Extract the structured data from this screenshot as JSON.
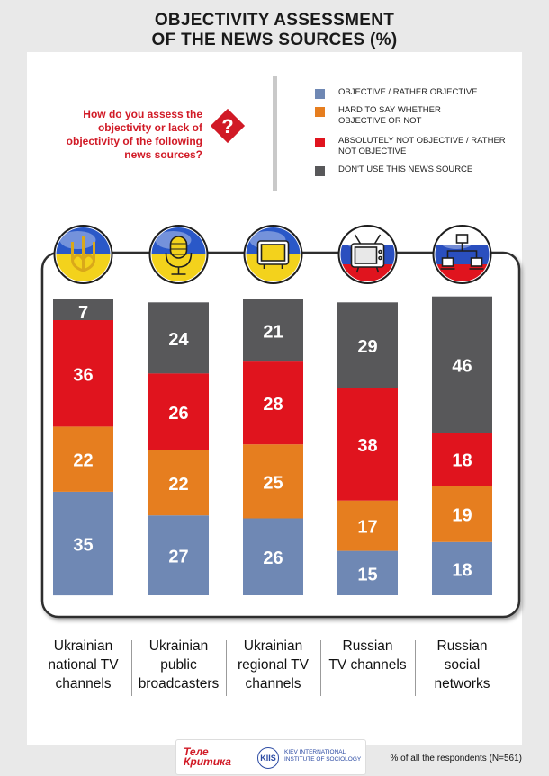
{
  "title_line1": "OBJECTIVITY ASSESSMENT",
  "title_line2": "OF THE NEWS SOURCES (%)",
  "question": "How do you assess the objectivity or lack of objectivity of the following news sources?",
  "question_mark": "?",
  "colors": {
    "objective": "#6f88b4",
    "hard_to_say": "#e67e1f",
    "not_objective": "#e0141e",
    "dont_use": "#58585a",
    "question_red": "#d11a26"
  },
  "chart_data": {
    "type": "bar",
    "stacked": true,
    "orientation": "vertical",
    "ylim": [
      0,
      100
    ],
    "legend_position": "top-right",
    "categories": [
      "Ukrainian national TV channels",
      "Ukrainian public broadcasters",
      "Ukrainian regional TV channels",
      "Russian TV channels",
      "Russian social networks"
    ],
    "category_lines": [
      [
        "Ukrainian",
        "national TV",
        "channels"
      ],
      [
        "Ukrainian",
        "public",
        "broadcasters"
      ],
      [
        "Ukrainian",
        "regional TV",
        "channels"
      ],
      [
        "Russian",
        "TV channels"
      ],
      [
        "Russian",
        "social",
        "networks"
      ]
    ],
    "series": [
      {
        "name": "OBJECTIVE / RATHER OBJECTIVE",
        "legend_lines": [
          "OBJECTIVE / RATHER OBJECTIVE"
        ],
        "color": "#6f88b4",
        "values": [
          35,
          27,
          26,
          15,
          18
        ]
      },
      {
        "name": "HARD TO SAY WHETHER OBJECTIVE OR NOT",
        "legend_lines": [
          "HARD TO SAY WHETHER",
          "OBJECTIVE OR NOT"
        ],
        "color": "#e67e1f",
        "values": [
          22,
          22,
          25,
          17,
          19
        ]
      },
      {
        "name": "ABSOLUTELY NOT OBJECTIVE / RATHER NOT OBJECTIVE",
        "legend_lines": [
          "ABSOLUTELY NOT OBJECTIVE / RATHER",
          "NOT OBJECTIVE"
        ],
        "color": "#e0141e",
        "values": [
          36,
          26,
          28,
          38,
          18
        ]
      },
      {
        "name": "DON'T USE THIS NEWS SOURCE",
        "legend_lines": [
          "DON'T USE THIS NEWS SOURCE"
        ],
        "color": "#58585a",
        "values": [
          7,
          24,
          21,
          29,
          46
        ]
      }
    ]
  },
  "icons": [
    "ukraine-trident-icon",
    "microphone-icon",
    "tv-screen-icon",
    "russian-tv-icon",
    "network-computers-icon"
  ],
  "footer": {
    "logo1_line1": "Теле",
    "logo1_line2": "Критика",
    "logo2": "KIIS",
    "logo3_line1": "KIEV INTERNATIONAL",
    "logo3_line2": "INSTITUTE OF SOCIOLOGY",
    "footnote": "% of all the respondents (N=561)"
  }
}
